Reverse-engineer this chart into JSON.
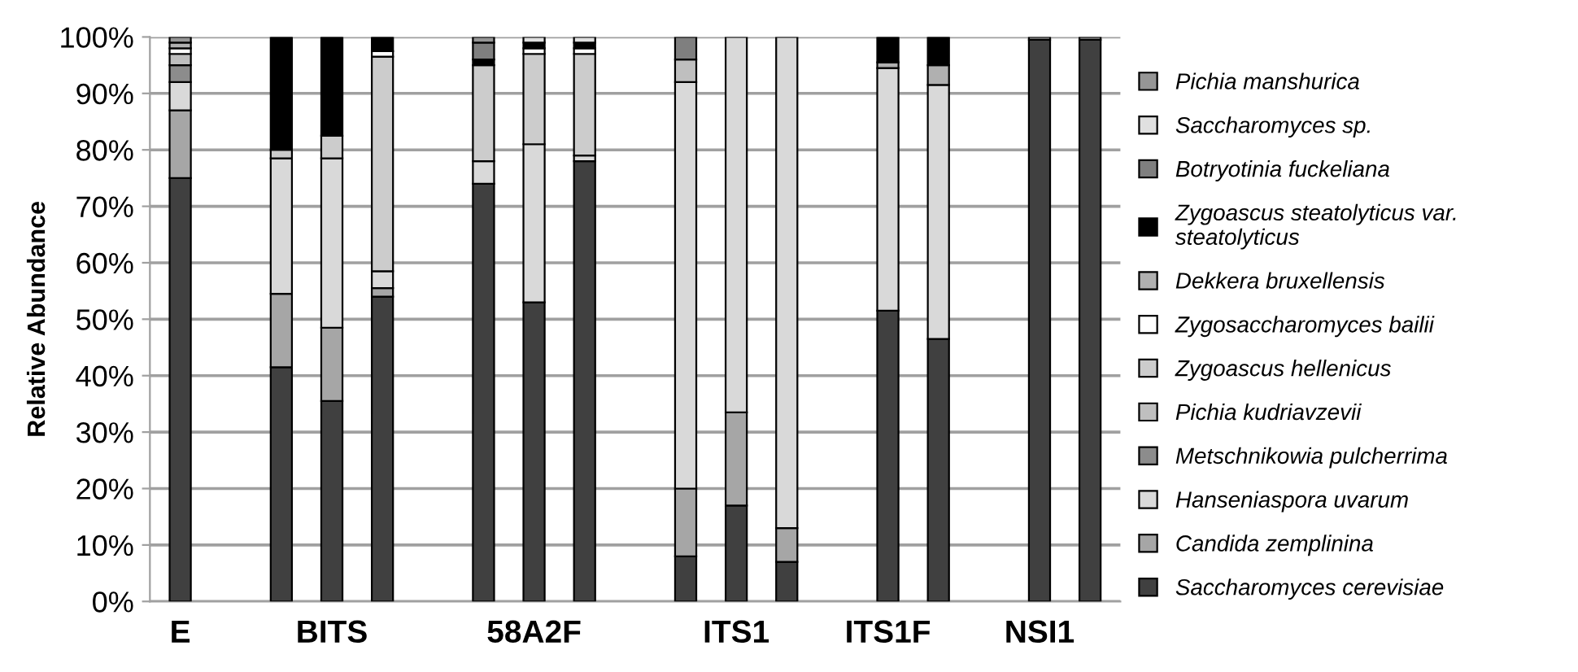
{
  "chart_data": {
    "type": "bar",
    "stacked": true,
    "ylabel": "Relative Abundance",
    "categories": [
      "E",
      null,
      null,
      "BITS",
      null,
      null,
      null,
      "58A2F",
      null,
      null,
      null,
      "ITS1",
      null,
      null,
      "ITS1F",
      null,
      null,
      "NSI1",
      null
    ],
    "ylim": [
      0,
      100
    ],
    "yticks": [
      {
        "value": 0,
        "label": "0%"
      },
      {
        "value": 10,
        "label": "10%"
      },
      {
        "value": 20,
        "label": "20%"
      },
      {
        "value": 30,
        "label": "30%"
      },
      {
        "value": 40,
        "label": "40%"
      },
      {
        "value": 50,
        "label": "50%"
      },
      {
        "value": 60,
        "label": "60%"
      },
      {
        "value": 70,
        "label": "70%"
      },
      {
        "value": 80,
        "label": "80%"
      },
      {
        "value": 90,
        "label": "90%"
      },
      {
        "value": 100,
        "label": "100%"
      }
    ],
    "grid": "y",
    "legend": "right",
    "series": [
      {
        "name": "Saccharomyces cerevisiae",
        "color": "#404040",
        "values": [
          75,
          null,
          41.5,
          35.5,
          54,
          null,
          74,
          53,
          78,
          null,
          8,
          17,
          7,
          null,
          51.5,
          46.5,
          null,
          99.5,
          99.5
        ]
      },
      {
        "name": "Candida zemplinina",
        "color": "#a6a6a6",
        "values": [
          12,
          null,
          13,
          13,
          1.5,
          null,
          null,
          null,
          null,
          null,
          12,
          16.5,
          6,
          null,
          null,
          null,
          null,
          null,
          null
        ]
      },
      {
        "name": "Hanseniaspora uvarum",
        "color": "#d9d9d9",
        "values": [
          5,
          null,
          24,
          30,
          3,
          null,
          4,
          28,
          1,
          null,
          72,
          66.5,
          87,
          null,
          43,
          45,
          null,
          null,
          null
        ]
      },
      {
        "name": "Metschnikowia pulcherrima",
        "color": "#8c8c8c",
        "values": [
          3,
          null,
          null,
          null,
          null,
          null,
          null,
          null,
          null,
          null,
          null,
          null,
          null,
          null,
          null,
          null,
          null,
          null,
          null
        ]
      },
      {
        "name": "Pichia kudriavzevii",
        "color": "#bfbfbf",
        "values": [
          2,
          null,
          null,
          null,
          null,
          null,
          null,
          null,
          null,
          null,
          4,
          null,
          null,
          null,
          null,
          null,
          null,
          null,
          null
        ]
      },
      {
        "name": "Zygoascus hellenicus",
        "color": "#cccccc",
        "values": [
          null,
          null,
          1.5,
          4,
          38,
          null,
          17,
          16,
          18,
          null,
          null,
          null,
          null,
          null,
          null,
          null,
          null,
          null,
          null
        ]
      },
      {
        "name": "Zygosaccharomyces bailii",
        "color": "#ffffff",
        "values": [
          1,
          null,
          null,
          null,
          1,
          null,
          null,
          1,
          1,
          null,
          null,
          null,
          null,
          null,
          null,
          null,
          null,
          null,
          null
        ]
      },
      {
        "name": "Dekkera bruxellensis",
        "color": "#b0b0b0",
        "values": [
          1,
          null,
          null,
          null,
          null,
          null,
          null,
          null,
          null,
          null,
          null,
          null,
          null,
          null,
          1,
          3.5,
          null,
          null,
          null
        ]
      },
      {
        "name": "Zygoascus steatolyticus var. steatolyticus",
        "color": "#000000",
        "values": [
          null,
          null,
          20,
          17.5,
          2.5,
          null,
          1,
          1,
          1,
          null,
          null,
          null,
          null,
          null,
          4.5,
          5,
          null,
          null,
          null
        ]
      },
      {
        "name": "Botryotinia fuckeliana",
        "color": "#7f7f7f",
        "values": [
          null,
          null,
          null,
          null,
          null,
          null,
          3,
          null,
          null,
          null,
          4,
          null,
          null,
          null,
          null,
          null,
          null,
          null,
          null
        ]
      },
      {
        "name": "Saccharomyces sp.",
        "color": "#e0e0e0",
        "values": [
          null,
          null,
          null,
          null,
          null,
          null,
          null,
          1,
          1,
          null,
          null,
          null,
          null,
          null,
          null,
          null,
          null,
          null,
          null
        ]
      },
      {
        "name": "Pichia manshurica",
        "color": "#969696",
        "values": [
          1,
          null,
          null,
          null,
          null,
          null,
          1,
          null,
          null,
          null,
          null,
          null,
          null,
          null,
          null,
          null,
          null,
          0.5,
          0.5
        ]
      }
    ]
  }
}
